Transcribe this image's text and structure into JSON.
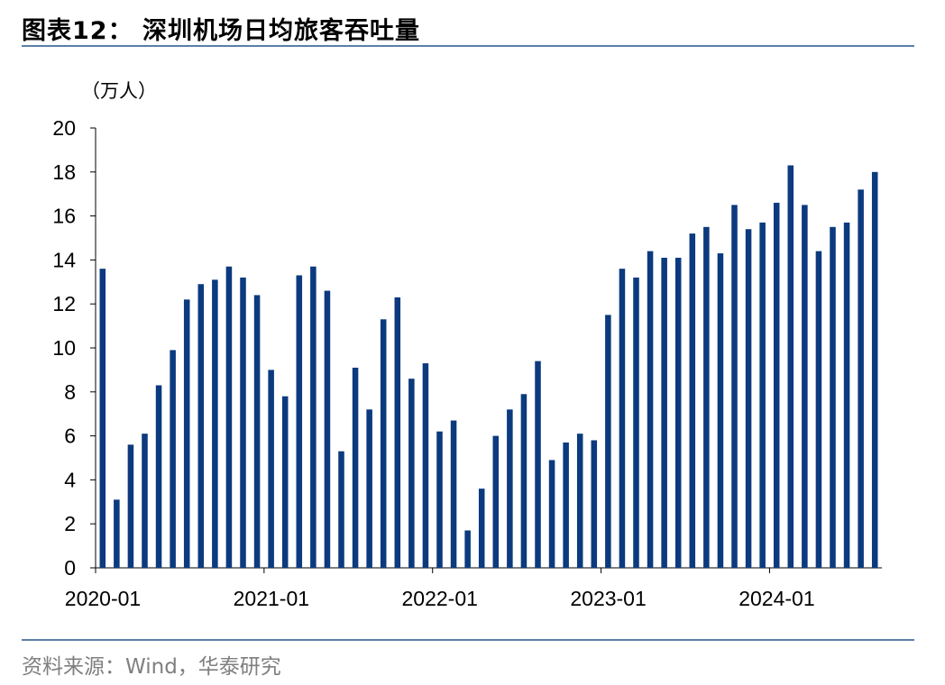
{
  "figure": {
    "title": "图表12： 深圳机场日均旅客吞吐量",
    "source": "资料来源：Wind，华泰研究"
  },
  "colors": {
    "bar": "#0b3a7e",
    "rule": "#5b7fa6",
    "axis": "#000000"
  },
  "chart_data": {
    "type": "bar",
    "title": "",
    "xlabel": "",
    "ylabel": "（万人）",
    "ylim": [
      0,
      20
    ],
    "y_ticks": [
      0,
      2,
      4,
      6,
      8,
      10,
      12,
      14,
      16,
      18,
      20
    ],
    "x_tick_labels": [
      "2020-01",
      "2021-01",
      "2022-01",
      "2023-01",
      "2024-01"
    ],
    "grid": false,
    "legend": "none",
    "categories": [
      "2020-01",
      "2020-02",
      "2020-03",
      "2020-04",
      "2020-05",
      "2020-06",
      "2020-07",
      "2020-08",
      "2020-09",
      "2020-10",
      "2020-11",
      "2020-12",
      "2021-01",
      "2021-02",
      "2021-03",
      "2021-04",
      "2021-05",
      "2021-06",
      "2021-07",
      "2021-08",
      "2021-09",
      "2021-10",
      "2021-11",
      "2021-12",
      "2022-01",
      "2022-02",
      "2022-03",
      "2022-04",
      "2022-05",
      "2022-06",
      "2022-07",
      "2022-08",
      "2022-09",
      "2022-10",
      "2022-11",
      "2022-12",
      "2023-01",
      "2023-02",
      "2023-03",
      "2023-04",
      "2023-05",
      "2023-06",
      "2023-07",
      "2023-08",
      "2023-09",
      "2023-10",
      "2023-11",
      "2023-12",
      "2024-01",
      "2024-02",
      "2024-03",
      "2024-04",
      "2024-05",
      "2024-06",
      "2024-07",
      "2024-08"
    ],
    "values": [
      13.6,
      3.1,
      5.6,
      6.1,
      8.3,
      9.9,
      12.2,
      12.9,
      13.1,
      13.7,
      13.2,
      12.4,
      9.0,
      7.8,
      13.3,
      13.7,
      12.6,
      5.3,
      9.1,
      7.2,
      11.3,
      12.3,
      8.6,
      9.3,
      6.2,
      6.7,
      1.7,
      3.6,
      6.0,
      7.2,
      7.9,
      9.4,
      4.9,
      5.7,
      6.1,
      5.8,
      11.5,
      13.6,
      13.2,
      14.4,
      14.1,
      14.1,
      15.2,
      15.5,
      14.3,
      16.5,
      15.4,
      15.7,
      16.6,
      18.3,
      16.5,
      14.4,
      15.5,
      15.7,
      17.2,
      18.0
    ]
  }
}
